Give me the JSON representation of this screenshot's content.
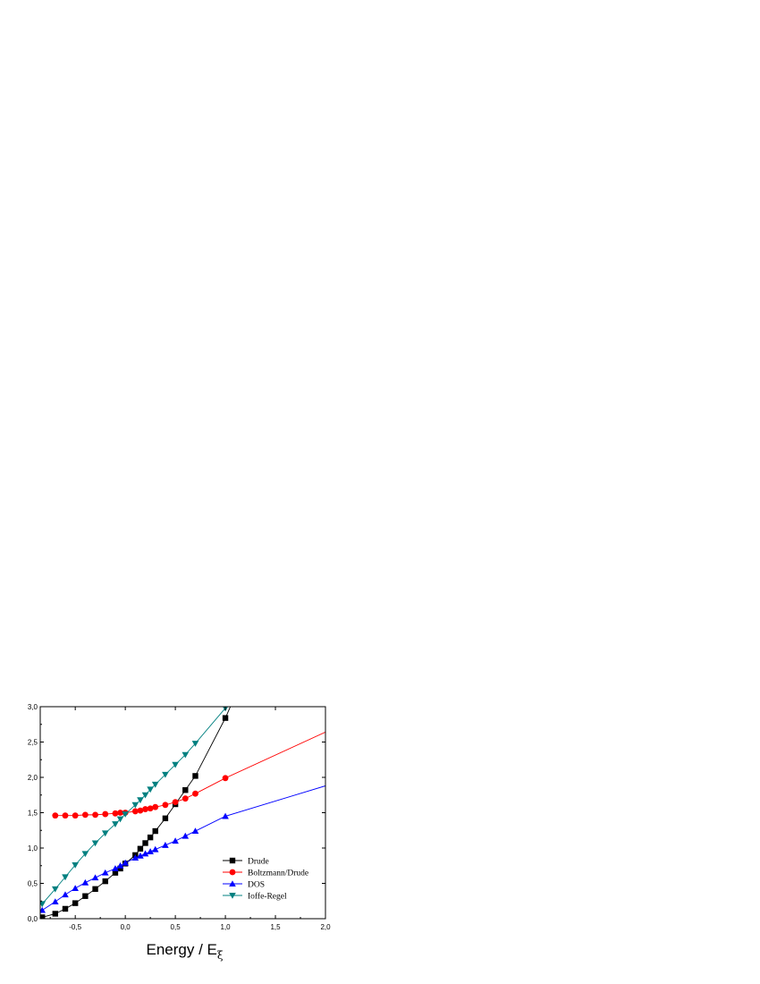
{
  "chart_data": {
    "type": "line",
    "title": "",
    "xlabel_main": "Energy / E",
    "xlabel_sub": "ξ",
    "ylabel": "",
    "xlim": [
      -0.85,
      2.0
    ],
    "ylim": [
      0.0,
      3.0
    ],
    "x_ticks": [
      -0.5,
      0.0,
      0.5,
      1.0,
      1.5,
      2.0
    ],
    "x_tick_labels": [
      "-0,5",
      "0,0",
      "0,5",
      "1,0",
      "1,5",
      "2,0"
    ],
    "y_ticks": [
      0.0,
      0.5,
      1.0,
      1.5,
      2.0,
      2.5,
      3.0
    ],
    "y_tick_labels": [
      "0,0",
      "0,5",
      "1,0",
      "1,5",
      "2,0",
      "2,5",
      "3,0"
    ],
    "grid": false,
    "legend_position": "bottom-right",
    "series": [
      {
        "name": "Drude",
        "color": "#000000",
        "marker": "square",
        "x": [
          -0.83,
          -0.7,
          -0.6,
          -0.5,
          -0.4,
          -0.3,
          -0.2,
          -0.1,
          -0.05,
          0.0,
          0.1,
          0.15,
          0.2,
          0.25,
          0.3,
          0.4,
          0.5,
          0.6,
          0.7,
          1.0
        ],
        "y": [
          0.02,
          0.07,
          0.14,
          0.22,
          0.32,
          0.42,
          0.53,
          0.65,
          0.71,
          0.78,
          0.9,
          0.99,
          1.07,
          1.15,
          1.24,
          1.42,
          1.62,
          1.82,
          2.02,
          2.84
        ],
        "line_x_end": 1.05,
        "line_y_end": 3.0
      },
      {
        "name": "Boltzmann/Drude",
        "color": "#ff0000",
        "marker": "circle",
        "x": [
          -0.7,
          -0.6,
          -0.5,
          -0.4,
          -0.3,
          -0.2,
          -0.1,
          -0.05,
          0.0,
          0.1,
          0.15,
          0.2,
          0.25,
          0.3,
          0.4,
          0.5,
          0.6,
          0.7,
          1.0
        ],
        "y": [
          1.46,
          1.46,
          1.46,
          1.47,
          1.47,
          1.48,
          1.49,
          1.5,
          1.5,
          1.52,
          1.53,
          1.55,
          1.56,
          1.58,
          1.61,
          1.65,
          1.7,
          1.77,
          1.99
        ],
        "line_x_end": 2.0,
        "line_y_end": 2.64
      },
      {
        "name": "DOS",
        "color": "#0000ff",
        "marker": "triangle-up",
        "x": [
          -0.83,
          -0.7,
          -0.6,
          -0.5,
          -0.4,
          -0.3,
          -0.2,
          -0.1,
          -0.05,
          0.0,
          0.1,
          0.15,
          0.2,
          0.25,
          0.3,
          0.4,
          0.5,
          0.6,
          0.7,
          1.0
        ],
        "y": [
          0.12,
          0.24,
          0.34,
          0.43,
          0.51,
          0.58,
          0.65,
          0.71,
          0.75,
          0.79,
          0.86,
          0.89,
          0.92,
          0.95,
          0.98,
          1.04,
          1.1,
          1.17,
          1.24,
          1.45
        ],
        "line_x_end": 2.0,
        "line_y_end": 1.88
      },
      {
        "name": "Ioffe-Regel",
        "color": "#008080",
        "marker": "triangle-down",
        "x": [
          -0.83,
          -0.7,
          -0.6,
          -0.5,
          -0.4,
          -0.3,
          -0.2,
          -0.1,
          -0.05,
          0.0,
          0.1,
          0.15,
          0.2,
          0.25,
          0.3,
          0.4,
          0.5,
          0.6,
          0.7,
          1.0
        ],
        "y": [
          0.21,
          0.42,
          0.59,
          0.76,
          0.92,
          1.07,
          1.21,
          1.34,
          1.41,
          1.48,
          1.61,
          1.68,
          1.75,
          1.83,
          1.9,
          2.04,
          2.18,
          2.32,
          2.48,
          2.98
        ],
        "line_x_end": 1.0,
        "line_y_end": 3.0
      }
    ]
  }
}
